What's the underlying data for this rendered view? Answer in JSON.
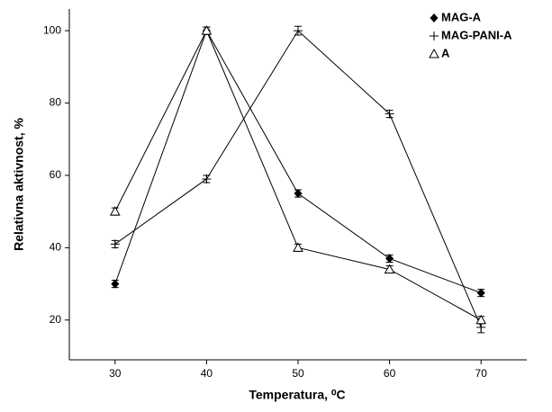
{
  "chart_data": {
    "type": "line",
    "x_label": "Temperatura, ⁰C",
    "y_label": "Relativna aktivnost, %",
    "x": [
      30,
      40,
      50,
      60,
      70
    ],
    "series": [
      {
        "name": "MAG-A",
        "color": "#000000",
        "marker": "diamond",
        "values": [
          30,
          100,
          55,
          37,
          27.5
        ],
        "errors": [
          1,
          1,
          1,
          1,
          1
        ]
      },
      {
        "name": "MAG-PANI-A",
        "color": "#000000",
        "marker": "plus",
        "values": [
          41,
          59,
          100,
          77,
          18
        ],
        "errors": [
          1,
          1,
          1.2,
          1,
          1.5
        ]
      },
      {
        "name": "A",
        "color": "#000000",
        "marker": "triangle",
        "values": [
          50,
          100,
          40,
          34,
          20
        ],
        "errors": [
          1,
          1,
          1,
          1,
          1
        ]
      }
    ],
    "xlim": [
      25,
      75
    ],
    "ylim": [
      9,
      106
    ],
    "xticks": [
      30,
      40,
      50,
      60,
      70
    ],
    "yticks": [
      20,
      40,
      60,
      80,
      100
    ],
    "legend": "top-right"
  }
}
